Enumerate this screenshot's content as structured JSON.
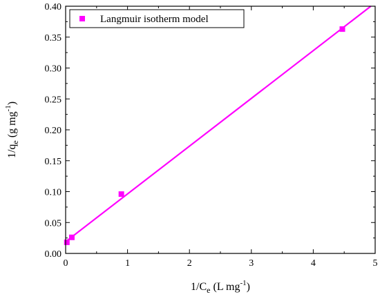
{
  "chart_data": {
    "type": "scatter",
    "title": "",
    "xlabel": {
      "base": "1/C",
      "sub": "e",
      "unit_pre": " (L mg",
      "sup": "-1",
      "unit_post": ")"
    },
    "ylabel": {
      "base": "1/q",
      "sub": "e",
      "unit_pre": " (g mg",
      "sup": "-1",
      "unit_post": ")"
    },
    "xlim": [
      0,
      5
    ],
    "ylim": [
      0,
      0.4
    ],
    "x_ticks": [
      0,
      1,
      2,
      3,
      4,
      5
    ],
    "x_tick_labels": [
      "0",
      "1",
      "2",
      "3",
      "4",
      "5"
    ],
    "y_ticks": [
      0,
      0.05,
      0.1,
      0.15,
      0.2,
      0.25,
      0.3,
      0.35,
      0.4
    ],
    "y_tick_labels": [
      "0.00",
      "0.05",
      "0.10",
      "0.15",
      "0.20",
      "0.25",
      "0.30",
      "0.35",
      "0.40"
    ],
    "grid": false,
    "legend": {
      "position": "top-left",
      "entries": [
        "Langmuir isotherm model"
      ]
    },
    "series": [
      {
        "name": "Langmuir isotherm model",
        "color": "#ff00ff",
        "marker": "square",
        "x": [
          0.02,
          0.1,
          0.9,
          4.47
        ],
        "y": [
          0.018,
          0.026,
          0.096,
          0.363
        ],
        "fit_line": {
          "x": [
            0,
            4.93
          ],
          "y": [
            0.019,
            0.4
          ]
        }
      }
    ]
  }
}
